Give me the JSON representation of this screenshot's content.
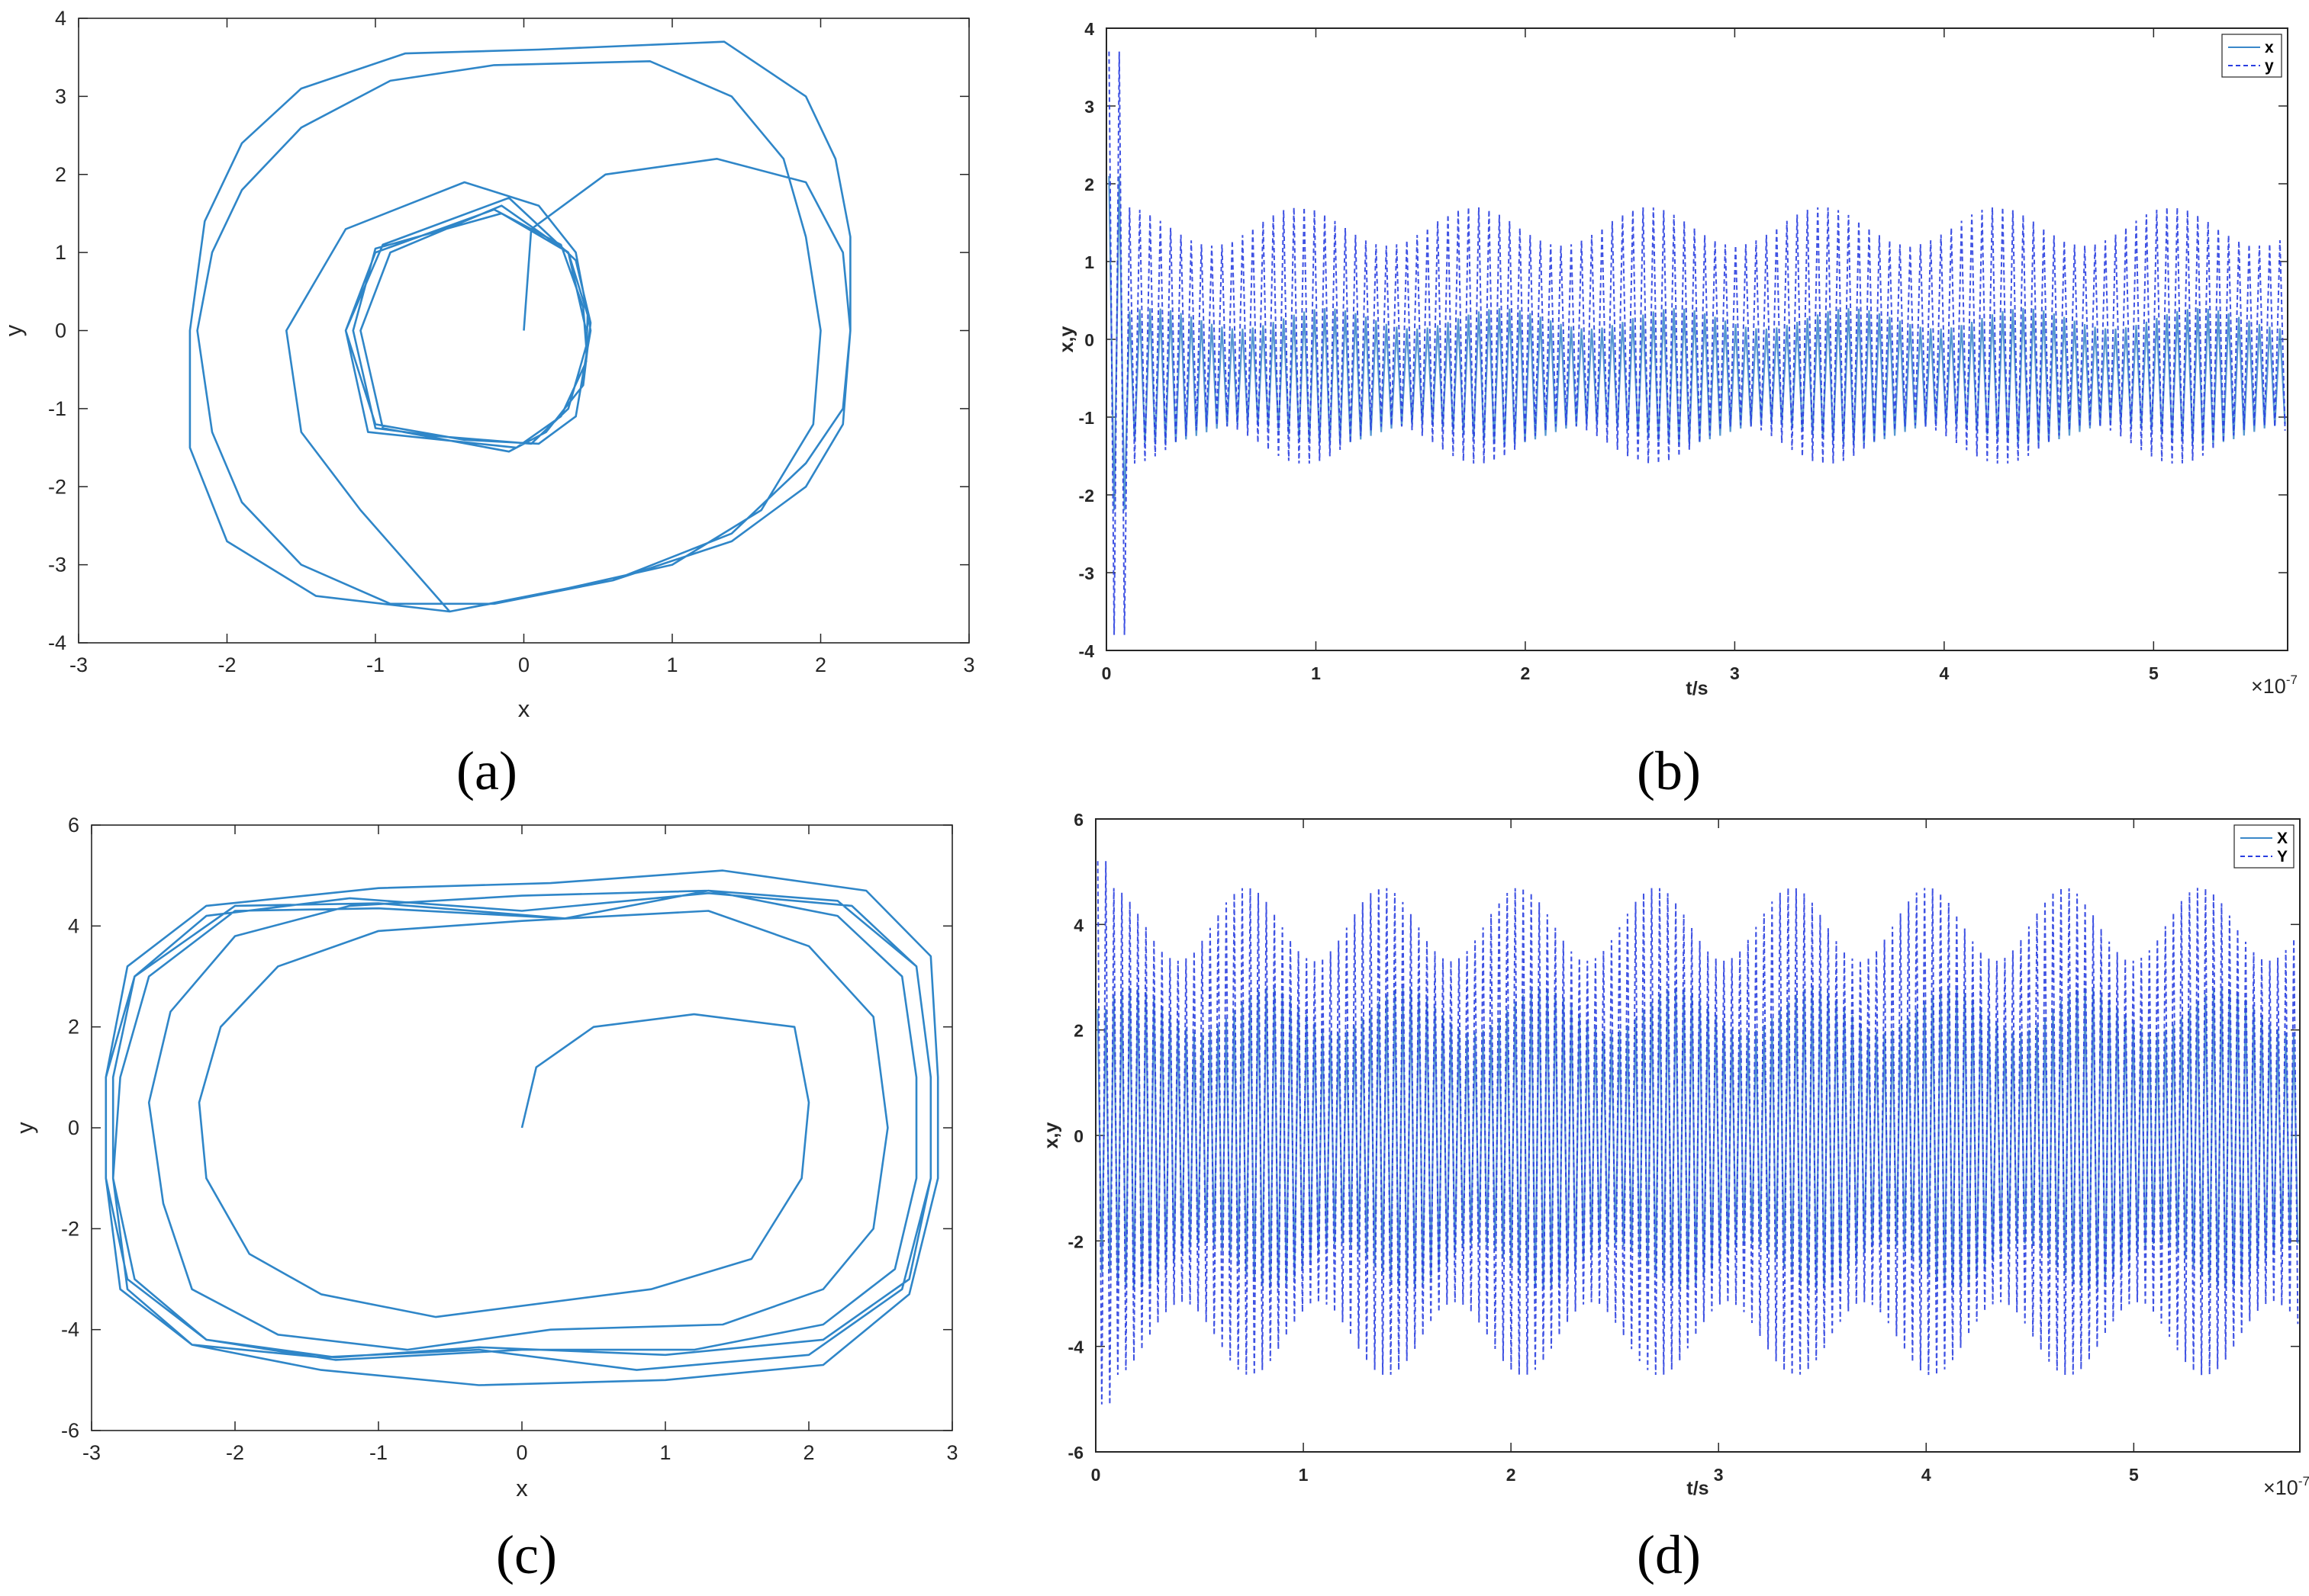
{
  "panels": [
    {
      "caption": "(a)",
      "chart_data": {
        "type": "line",
        "title": "",
        "xlabel": "x",
        "ylabel": "y",
        "xlim": [
          -3,
          3
        ],
        "ylim": [
          -4,
          4
        ],
        "xticks": [
          "-3",
          "-2",
          "-1",
          "0",
          "1",
          "2",
          "3"
        ],
        "yticks": [
          "-4",
          "-3",
          "-2",
          "-1",
          "0",
          "1",
          "2",
          "3",
          "4"
        ],
        "grid": false,
        "series": [
          {
            "points": [
              [
                0,
                0
              ],
              [
                0.05,
                1.3
              ],
              [
                0.55,
                2.0
              ],
              [
                1.3,
                2.2
              ],
              [
                1.9,
                1.9
              ],
              [
                2.15,
                1.0
              ],
              [
                2.2,
                0
              ],
              [
                2.15,
                -1.0
              ],
              [
                1.9,
                -1.7
              ],
              [
                1.4,
                -2.6
              ],
              [
                0.6,
                -3.2
              ],
              [
                -0.2,
                -3.5
              ],
              [
                -0.9,
                -3.5
              ],
              [
                -1.5,
                -3.0
              ],
              [
                -1.9,
                -2.2
              ],
              [
                -2.1,
                -1.3
              ],
              [
                -2.2,
                0
              ],
              [
                -2.1,
                1.0
              ],
              [
                -1.9,
                1.8
              ],
              [
                -1.5,
                2.6
              ],
              [
                -0.9,
                3.2
              ],
              [
                -0.2,
                3.4
              ],
              [
                0.85,
                3.45
              ],
              [
                1.4,
                3.0
              ],
              [
                1.75,
                2.2
              ],
              [
                1.9,
                1.2
              ],
              [
                2.0,
                0
              ],
              [
                1.95,
                -1.2
              ],
              [
                1.6,
                -2.3
              ],
              [
                1.0,
                -3.0
              ],
              [
                0.3,
                -3.3
              ],
              [
                -0.5,
                -3.6
              ],
              [
                -1.4,
                -3.4
              ],
              [
                -2.0,
                -2.7
              ],
              [
                -2.25,
                -1.5
              ],
              [
                -2.25,
                0
              ],
              [
                -2.15,
                1.4
              ],
              [
                -1.9,
                2.4
              ],
              [
                -1.5,
                3.1
              ],
              [
                -0.8,
                3.55
              ],
              [
                0.1,
                3.6
              ],
              [
                1.35,
                3.7
              ],
              [
                1.9,
                3.0
              ],
              [
                2.1,
                2.2
              ],
              [
                2.2,
                1.2
              ],
              [
                2.2,
                0
              ],
              [
                2.15,
                -1.2
              ],
              [
                1.9,
                -2.0
              ],
              [
                1.4,
                -2.7
              ],
              [
                0.6,
                -3.2
              ],
              [
                -0.5,
                -3.6
              ],
              [
                -1.1,
                -2.3
              ],
              [
                -1.5,
                -1.3
              ],
              [
                -1.6,
                0
              ],
              [
                -1.2,
                1.3
              ],
              [
                -0.4,
                1.9
              ],
              [
                0.1,
                1.6
              ],
              [
                0.35,
                1.0
              ],
              [
                0.45,
                0
              ],
              [
                0.35,
                -1.1
              ],
              [
                0.1,
                -1.45
              ],
              [
                -0.4,
                -1.4
              ],
              [
                -1.0,
                -1.2
              ],
              [
                -1.2,
                0
              ],
              [
                -1.0,
                1.0
              ],
              [
                -0.2,
                1.55
              ],
              [
                0.25,
                1.1
              ],
              [
                0.4,
                0.3
              ],
              [
                0.42,
                -0.2
              ],
              [
                0.3,
                -1.0
              ],
              [
                0.05,
                -1.45
              ],
              [
                -0.6,
                -1.35
              ],
              [
                -1.0,
                -1.25
              ],
              [
                -1.15,
                0
              ],
              [
                -1.0,
                1.05
              ],
              [
                -0.15,
                1.5
              ],
              [
                0.3,
                1.0
              ],
              [
                0.43,
                0.2
              ],
              [
                0.42,
                -0.4
              ],
              [
                0.25,
                -1.1
              ],
              [
                -0.05,
                -1.5
              ],
              [
                -1.05,
                -1.3
              ],
              [
                -1.2,
                0
              ],
              [
                -0.95,
                1.1
              ],
              [
                -0.1,
                1.7
              ],
              [
                0.35,
                0.9
              ],
              [
                0.45,
                0.1
              ],
              [
                0.4,
                -0.7
              ],
              [
                0.15,
                -1.3
              ],
              [
                -0.1,
                -1.55
              ],
              [
                -0.95,
                -1.25
              ],
              [
                -1.1,
                0
              ],
              [
                -0.9,
                1.0
              ],
              [
                -0.15,
                1.6
              ],
              [
                0.3,
                1.0
              ],
              [
                0.42,
                0
              ]
            ]
          }
        ]
      }
    },
    {
      "caption": "(b)",
      "chart_data": {
        "type": "line",
        "title": "",
        "xlabel": "t/s",
        "ylabel": "x,y",
        "xlim": [
          0,
          5.64
        ],
        "ylim": [
          -4,
          4
        ],
        "xticks": [
          "0",
          "1",
          "2",
          "3",
          "4",
          "5"
        ],
        "yticks": [
          "-4",
          "-3",
          "-2",
          "-1",
          "0",
          "1",
          "2",
          "3",
          "4"
        ],
        "x_multiplier": "×10",
        "x_exponent": "-7",
        "legend_position": "top-right",
        "grid": false,
        "series": [
          {
            "name": "x",
            "style": "solid",
            "color": "#3a87c9",
            "periods": 115,
            "max": 0.4,
            "min": -1.35,
            "transient_max": 2.1,
            "transient_min": -2.2
          },
          {
            "name": "y",
            "style": "dashed",
            "color": "#2a3fe0",
            "periods": 115,
            "max": 1.7,
            "min": -1.6,
            "transient_max": 3.7,
            "transient_min": -3.8
          }
        ]
      }
    },
    {
      "caption": "(c)",
      "chart_data": {
        "type": "line",
        "title": "",
        "xlabel": "x",
        "ylabel": "y",
        "xlim": [
          -3,
          3
        ],
        "ylim": [
          -6,
          6
        ],
        "xticks": [
          "-3",
          "-2",
          "-1",
          "0",
          "1",
          "2",
          "3"
        ],
        "yticks": [
          "-6",
          "-4",
          "-2",
          "0",
          "2",
          "4",
          "6"
        ],
        "grid": false,
        "series": [
          {
            "points": [
              [
                0,
                0
              ],
              [
                0.1,
                1.2
              ],
              [
                0.5,
                2.0
              ],
              [
                1.2,
                2.25
              ],
              [
                1.9,
                2.0
              ],
              [
                2.0,
                0.5
              ],
              [
                1.95,
                -1.0
              ],
              [
                1.6,
                -2.6
              ],
              [
                0.9,
                -3.2
              ],
              [
                -0.6,
                -3.75
              ],
              [
                -1.4,
                -3.3
              ],
              [
                -1.9,
                -2.5
              ],
              [
                -2.2,
                -1.0
              ],
              [
                -2.25,
                0.5
              ],
              [
                -2.1,
                2.0
              ],
              [
                -1.7,
                3.2
              ],
              [
                -1.0,
                3.9
              ],
              [
                0.0,
                4.1
              ],
              [
                1.3,
                4.3
              ],
              [
                2.0,
                3.6
              ],
              [
                2.45,
                2.2
              ],
              [
                2.55,
                0
              ],
              [
                2.45,
                -2.0
              ],
              [
                2.1,
                -3.2
              ],
              [
                1.4,
                -3.9
              ],
              [
                0.2,
                -4.0
              ],
              [
                -0.8,
                -4.4
              ],
              [
                -1.7,
                -4.1
              ],
              [
                -2.3,
                -3.2
              ],
              [
                -2.5,
                -1.5
              ],
              [
                -2.6,
                0.5
              ],
              [
                -2.45,
                2.3
              ],
              [
                -2.0,
                3.8
              ],
              [
                -1.2,
                4.4
              ],
              [
                0.0,
                4.6
              ],
              [
                1.3,
                4.7
              ],
              [
                2.2,
                4.2
              ],
              [
                2.65,
                3.0
              ],
              [
                2.75,
                1.0
              ],
              [
                2.75,
                -1.0
              ],
              [
                2.6,
                -2.8
              ],
              [
                2.1,
                -3.9
              ],
              [
                1.2,
                -4.4
              ],
              [
                0.0,
                -4.4
              ],
              [
                -1.3,
                -4.6
              ],
              [
                -2.2,
                -4.2
              ],
              [
                -2.7,
                -3.0
              ],
              [
                -2.85,
                -1.0
              ],
              [
                -2.85,
                1.0
              ],
              [
                -2.7,
                3.0
              ],
              [
                -2.2,
                4.2
              ],
              [
                -1.2,
                4.55
              ],
              [
                0.0,
                4.3
              ],
              [
                1.3,
                4.65
              ],
              [
                2.3,
                4.4
              ],
              [
                2.75,
                3.2
              ],
              [
                2.85,
                1.0
              ],
              [
                2.85,
                -1.0
              ],
              [
                2.65,
                -3.2
              ],
              [
                2.0,
                -4.5
              ],
              [
                0.8,
                -4.8
              ],
              [
                -0.3,
                -4.4
              ],
              [
                -1.4,
                -4.55
              ],
              [
                -2.3,
                -4.3
              ],
              [
                -2.8,
                -3.2
              ],
              [
                -2.9,
                -1.0
              ],
              [
                -2.9,
                1.0
              ],
              [
                -2.75,
                3.2
              ],
              [
                -2.2,
                4.4
              ],
              [
                -1.0,
                4.75
              ],
              [
                0.2,
                4.85
              ],
              [
                1.4,
                5.1
              ],
              [
                2.4,
                4.7
              ],
              [
                2.85,
                3.4
              ],
              [
                2.9,
                1.0
              ],
              [
                2.9,
                -1.0
              ],
              [
                2.7,
                -3.3
              ],
              [
                2.1,
                -4.7
              ],
              [
                1.0,
                -5.0
              ],
              [
                -0.3,
                -5.1
              ],
              [
                -1.4,
                -4.8
              ],
              [
                -2.3,
                -4.3
              ],
              [
                -2.75,
                -3.2
              ],
              [
                -2.85,
                -1.0
              ],
              [
                -2.8,
                1.0
              ],
              [
                -2.6,
                3.0
              ],
              [
                -2.0,
                4.3
              ],
              [
                -1.0,
                4.35
              ],
              [
                0.3,
                4.15
              ],
              [
                1.3,
                4.7
              ],
              [
                2.2,
                4.5
              ],
              [
                2.75,
                3.2
              ],
              [
                2.85,
                1.0
              ],
              [
                2.85,
                -1.0
              ],
              [
                2.7,
                -3.0
              ],
              [
                2.1,
                -4.2
              ],
              [
                1.0,
                -4.5
              ],
              [
                -0.3,
                -4.35
              ],
              [
                -1.3,
                -4.55
              ],
              [
                -2.2,
                -4.2
              ],
              [
                -2.75,
                -3.0
              ],
              [
                -2.9,
                -1.0
              ],
              [
                -2.9,
                1.0
              ],
              [
                -2.7,
                3.0
              ],
              [
                -2.0,
                4.4
              ],
              [
                -1.0,
                4.45
              ],
              [
                0.3,
                4.15
              ]
            ]
          }
        ]
      }
    },
    {
      "caption": "(d)",
      "chart_data": {
        "type": "line",
        "title": "",
        "xlabel": "t/s",
        "ylabel": "x,y",
        "xlim": [
          0,
          5.8
        ],
        "ylim": [
          -6,
          6
        ],
        "xticks": [
          "0",
          "1",
          "2",
          "3",
          "4",
          "5"
        ],
        "yticks": [
          "-6",
          "-4",
          "-2",
          "0",
          "2",
          "4",
          "6"
        ],
        "x_multiplier": "×10",
        "x_exponent": "-7",
        "legend_position": "top-right",
        "grid": false,
        "series": [
          {
            "name": "X",
            "style": "solid",
            "color": "#3a87c9",
            "periods": 150,
            "max": 2.8,
            "min": -2.9,
            "transient_max": 2.4,
            "transient_min": -2.6
          },
          {
            "name": "Y",
            "style": "dashed",
            "color": "#2a3fe0",
            "periods": 150,
            "max": 4.7,
            "min": -4.55,
            "transient_max": 5.2,
            "transient_min": -5.1
          }
        ]
      }
    }
  ]
}
